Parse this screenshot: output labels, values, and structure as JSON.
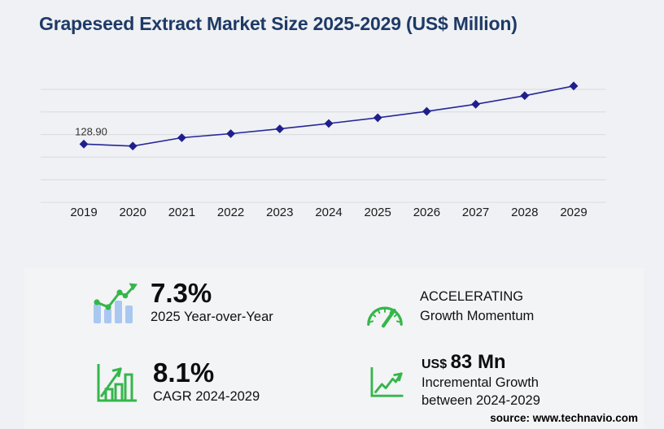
{
  "title": "Grapeseed Extract Market Size 2025-2029 (US$ Million)",
  "chart_data": {
    "type": "line",
    "x": [
      "2019",
      "2020",
      "2021",
      "2022",
      "2023",
      "2024",
      "2025",
      "2026",
      "2027",
      "2028",
      "2029"
    ],
    "values": [
      128.9,
      124.5,
      143.0,
      152.0,
      162.5,
      174.5,
      187.2,
      201.3,
      217.1,
      236.0,
      257.5
    ],
    "point_label": "128.90",
    "title": "Grapeseed Extract Market Size 2025-2029 (US$ Million)",
    "xlabel": "",
    "ylabel": "",
    "ylim": [
      0,
      250
    ],
    "gridlines": [
      0,
      50,
      100,
      150,
      200,
      250
    ],
    "legend": "none",
    "line_color": "#26269a",
    "marker_color": "#1f1f8c",
    "marker_shape": "diamond"
  },
  "stats": {
    "yoy": {
      "value": "7.3%",
      "label": "2025 Year-over-Year"
    },
    "momentum": {
      "line1": "ACCELERATING",
      "line2": "Growth Momentum"
    },
    "cagr": {
      "value": "8.1%",
      "label": "CAGR 2024-2029"
    },
    "incremental": {
      "currency": "US$",
      "value": "83 Mn",
      "line1": "Incremental Growth",
      "line2": "between 2024-2029"
    }
  },
  "source": "source: www.technavio.com",
  "colors": {
    "page_bg": "#eff1f4",
    "panel_bg": "#f3f4f6",
    "title_navy": "#1e3a66",
    "series_navy": "#26269a",
    "icon_green": "#35b64a",
    "icon_blue": "#a9c8f1",
    "gridline": "#d9dadd"
  }
}
